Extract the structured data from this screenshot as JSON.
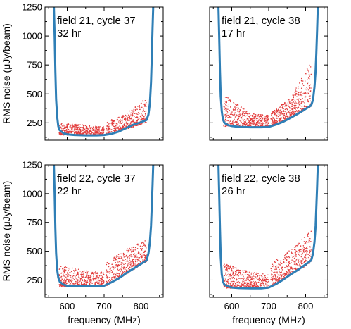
{
  "chart_data": [
    {
      "type": "scatter",
      "annotation": [
        "field 21, cycle 37",
        "32 hr"
      ],
      "ylabel": "RMS noise (μJy/beam)",
      "xlabel": "",
      "xlim": [
        540,
        860
      ],
      "ylim": [
        100,
        1250
      ],
      "xticks": [
        600,
        700,
        800
      ],
      "yticks": [
        250,
        500,
        750,
        1000,
        1250
      ],
      "show_xticklabels": false,
      "show_yticklabels": true,
      "colors": {
        "model": "#2f7fb6",
        "points": "#e23b3b"
      },
      "model_curve": {
        "x": [
          564,
          566,
          568,
          570,
          573,
          576,
          580,
          590,
          600,
          620,
          650,
          680,
          700,
          720,
          740,
          760,
          780,
          800,
          815,
          820,
          824,
          827,
          829,
          831,
          833
        ],
        "y": [
          1250,
          1000,
          700,
          450,
          300,
          220,
          185,
          160,
          150,
          145,
          142,
          142,
          145,
          155,
          175,
          205,
          235,
          255,
          275,
          320,
          420,
          600,
          800,
          1050,
          1250
        ]
      },
      "point_groups": [
        {
          "x_range": [
            578,
            650
          ],
          "y_min": [
            145,
            145
          ],
          "y_max": [
            250,
            230
          ]
        },
        {
          "x_range": [
            650,
            700
          ],
          "y_min": [
            145,
            145
          ],
          "y_max": [
            230,
            220
          ]
        },
        {
          "x_range": [
            706,
            760
          ],
          "y_min": [
            150,
            195
          ],
          "y_max": [
            260,
            330
          ]
        },
        {
          "x_range": [
            760,
            815
          ],
          "y_min": [
            195,
            255
          ],
          "y_max": [
            330,
            470
          ]
        }
      ]
    },
    {
      "type": "scatter",
      "annotation": [
        "field 21, cycle 38",
        "17 hr"
      ],
      "ylabel": "",
      "xlabel": "",
      "xlim": [
        540,
        860
      ],
      "ylim": [
        100,
        1250
      ],
      "xticks": [
        600,
        700,
        800
      ],
      "yticks": [
        250,
        500,
        750,
        1000,
        1250
      ],
      "show_xticklabels": false,
      "show_yticklabels": false,
      "colors": {
        "model": "#2f7fb6",
        "points": "#e23b3b"
      },
      "model_curve": {
        "x": [
          564,
          566,
          568,
          570,
          573,
          576,
          580,
          590,
          600,
          620,
          650,
          680,
          700,
          720,
          740,
          760,
          780,
          800,
          815,
          820,
          824,
          827,
          829,
          831,
          833
        ],
        "y": [
          1250,
          1000,
          700,
          480,
          350,
          280,
          250,
          230,
          222,
          215,
          212,
          212,
          215,
          235,
          260,
          295,
          330,
          370,
          400,
          450,
          560,
          700,
          850,
          1050,
          1250
        ]
      },
      "point_groups": [
        {
          "x_range": [
            578,
            650
          ],
          "y_min": [
            220,
            212
          ],
          "y_max": [
            500,
            330
          ]
        },
        {
          "x_range": [
            650,
            700
          ],
          "y_min": [
            212,
            212
          ],
          "y_max": [
            330,
            320
          ]
        },
        {
          "x_range": [
            706,
            760
          ],
          "y_min": [
            225,
            290
          ],
          "y_max": [
            340,
            470
          ]
        },
        {
          "x_range": [
            760,
            815
          ],
          "y_min": [
            290,
            390
          ],
          "y_max": [
            470,
            780
          ]
        }
      ]
    },
    {
      "type": "scatter",
      "annotation": [
        "field 22, cycle 37",
        "22 hr"
      ],
      "ylabel": "RMS noise (μJy/beam)",
      "xlabel": "frequency (MHz)",
      "xlim": [
        540,
        860
      ],
      "ylim": [
        100,
        1250
      ],
      "xticks": [
        600,
        700,
        800
      ],
      "yticks": [
        250,
        500,
        750,
        1000,
        1250
      ],
      "show_xticklabels": true,
      "show_yticklabels": true,
      "colors": {
        "model": "#2f7fb6",
        "points": "#e23b3b"
      },
      "model_curve": {
        "x": [
          564,
          566,
          568,
          570,
          573,
          576,
          580,
          590,
          600,
          620,
          650,
          680,
          700,
          720,
          740,
          760,
          780,
          800,
          815,
          820,
          824,
          827,
          829,
          831,
          833
        ],
        "y": [
          1250,
          1000,
          700,
          480,
          340,
          270,
          235,
          210,
          200,
          196,
          195,
          195,
          200,
          230,
          265,
          310,
          350,
          390,
          420,
          480,
          580,
          720,
          880,
          1060,
          1250
        ]
      },
      "point_groups": [
        {
          "x_range": [
            578,
            650
          ],
          "y_min": [
            195,
            195
          ],
          "y_max": [
            380,
            330
          ]
        },
        {
          "x_range": [
            650,
            700
          ],
          "y_min": [
            195,
            195
          ],
          "y_max": [
            330,
            320
          ]
        },
        {
          "x_range": [
            706,
            760
          ],
          "y_min": [
            200,
            300
          ],
          "y_max": [
            400,
            520
          ]
        },
        {
          "x_range": [
            760,
            815
          ],
          "y_min": [
            300,
            410
          ],
          "y_max": [
            520,
            600
          ]
        }
      ]
    },
    {
      "type": "scatter",
      "annotation": [
        "field 22, cycle 38",
        "26 hr"
      ],
      "ylabel": "",
      "xlabel": "frequency (MHz)",
      "xlim": [
        540,
        860
      ],
      "ylim": [
        100,
        1250
      ],
      "xticks": [
        600,
        700,
        800
      ],
      "yticks": [
        250,
        500,
        750,
        1000,
        1250
      ],
      "show_xticklabels": true,
      "show_yticklabels": false,
      "colors": {
        "model": "#2f7fb6",
        "points": "#e23b3b"
      },
      "model_curve": {
        "x": [
          564,
          566,
          568,
          570,
          573,
          576,
          580,
          590,
          600,
          620,
          650,
          680,
          700,
          720,
          740,
          760,
          780,
          800,
          815,
          820,
          824,
          827,
          829,
          831,
          833
        ],
        "y": [
          1250,
          1000,
          700,
          450,
          300,
          240,
          210,
          195,
          185,
          180,
          178,
          178,
          185,
          215,
          255,
          300,
          340,
          385,
          420,
          480,
          580,
          720,
          880,
          1060,
          1250
        ]
      },
      "point_groups": [
        {
          "x_range": [
            578,
            650
          ],
          "y_min": [
            180,
            178
          ],
          "y_max": [
            400,
            320
          ]
        },
        {
          "x_range": [
            650,
            700
          ],
          "y_min": [
            178,
            178
          ],
          "y_max": [
            320,
            300
          ]
        },
        {
          "x_range": [
            706,
            760
          ],
          "y_min": [
            190,
            295
          ],
          "y_max": [
            390,
            520
          ]
        },
        {
          "x_range": [
            760,
            815
          ],
          "y_min": [
            295,
            400
          ],
          "y_max": [
            520,
            680
          ]
        }
      ]
    }
  ]
}
